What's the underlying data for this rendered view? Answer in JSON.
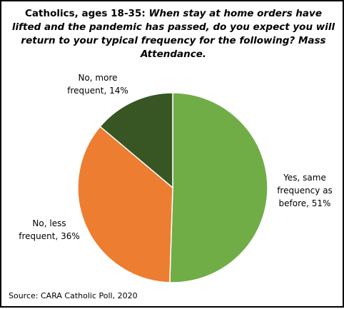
{
  "chart_data": {
    "type": "pie",
    "title_prefix": "Catholics, ages 18-35: ",
    "title_question": "When stay at home orders have lifted and the pandemic has passed, do you expect you will return to your typical frequency for the following? Mass Attendance.",
    "slices": [
      {
        "label": "Yes, same frequency as before, 51%",
        "value": 51,
        "color": "#70ad47"
      },
      {
        "label": "No, less frequent, 36%",
        "value": 36,
        "color": "#ed7d31"
      },
      {
        "label": "No, more frequent, 14%",
        "value": 14,
        "color": "#375623"
      }
    ],
    "legend": "none",
    "source": "Source: CARA Catholic Poll, 2020"
  }
}
